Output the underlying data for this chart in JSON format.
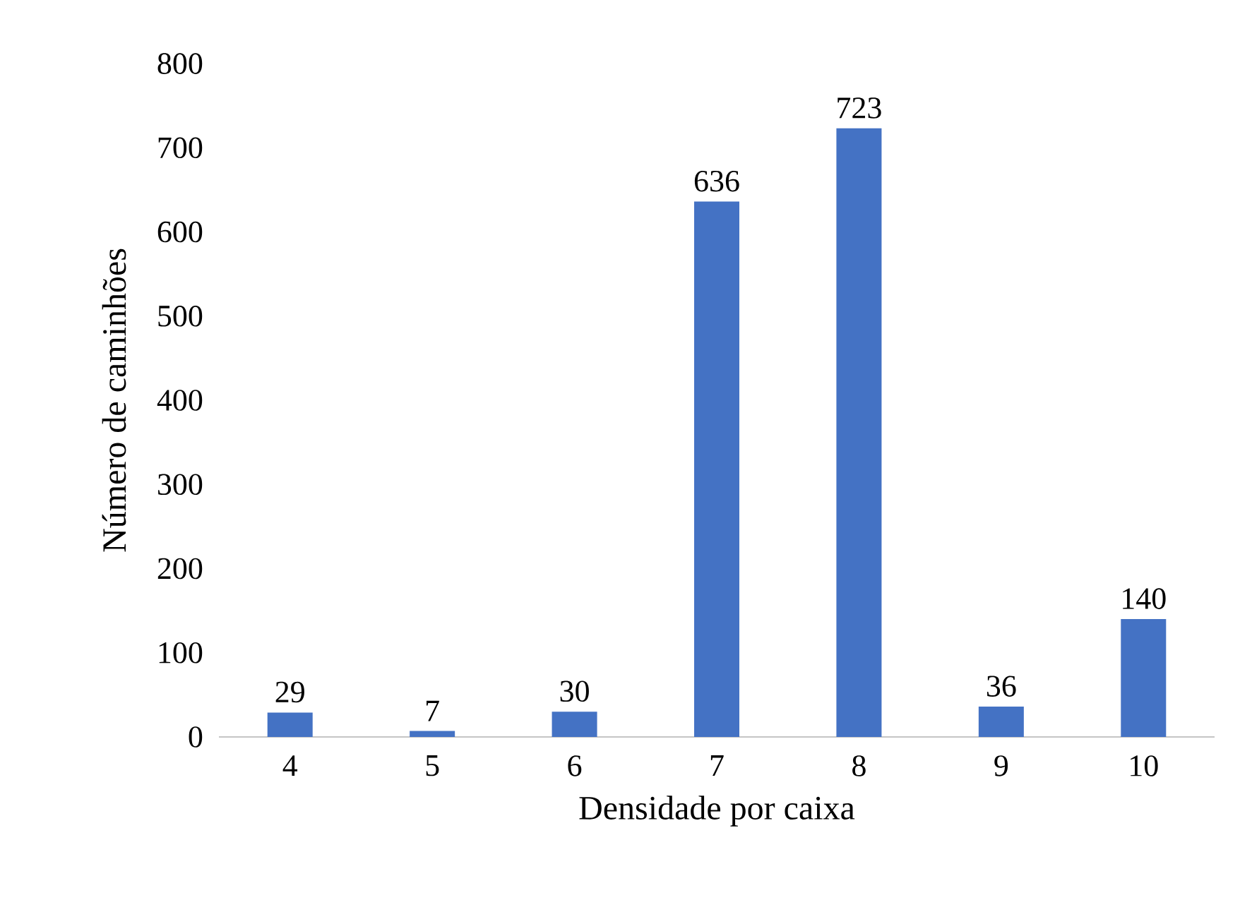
{
  "chart_data": {
    "type": "bar",
    "xlabel": "Densidade por caixa",
    "ylabel": "Número de caminhões",
    "categories": [
      "4",
      "5",
      "6",
      "7",
      "8",
      "9",
      "10"
    ],
    "values": [
      29,
      7,
      30,
      636,
      723,
      36,
      140
    ],
    "color": "#4472c4",
    "ylim": [
      0,
      800
    ],
    "yticks": [
      0,
      100,
      200,
      300,
      400,
      500,
      600,
      700,
      800
    ],
    "data_labels": true
  }
}
